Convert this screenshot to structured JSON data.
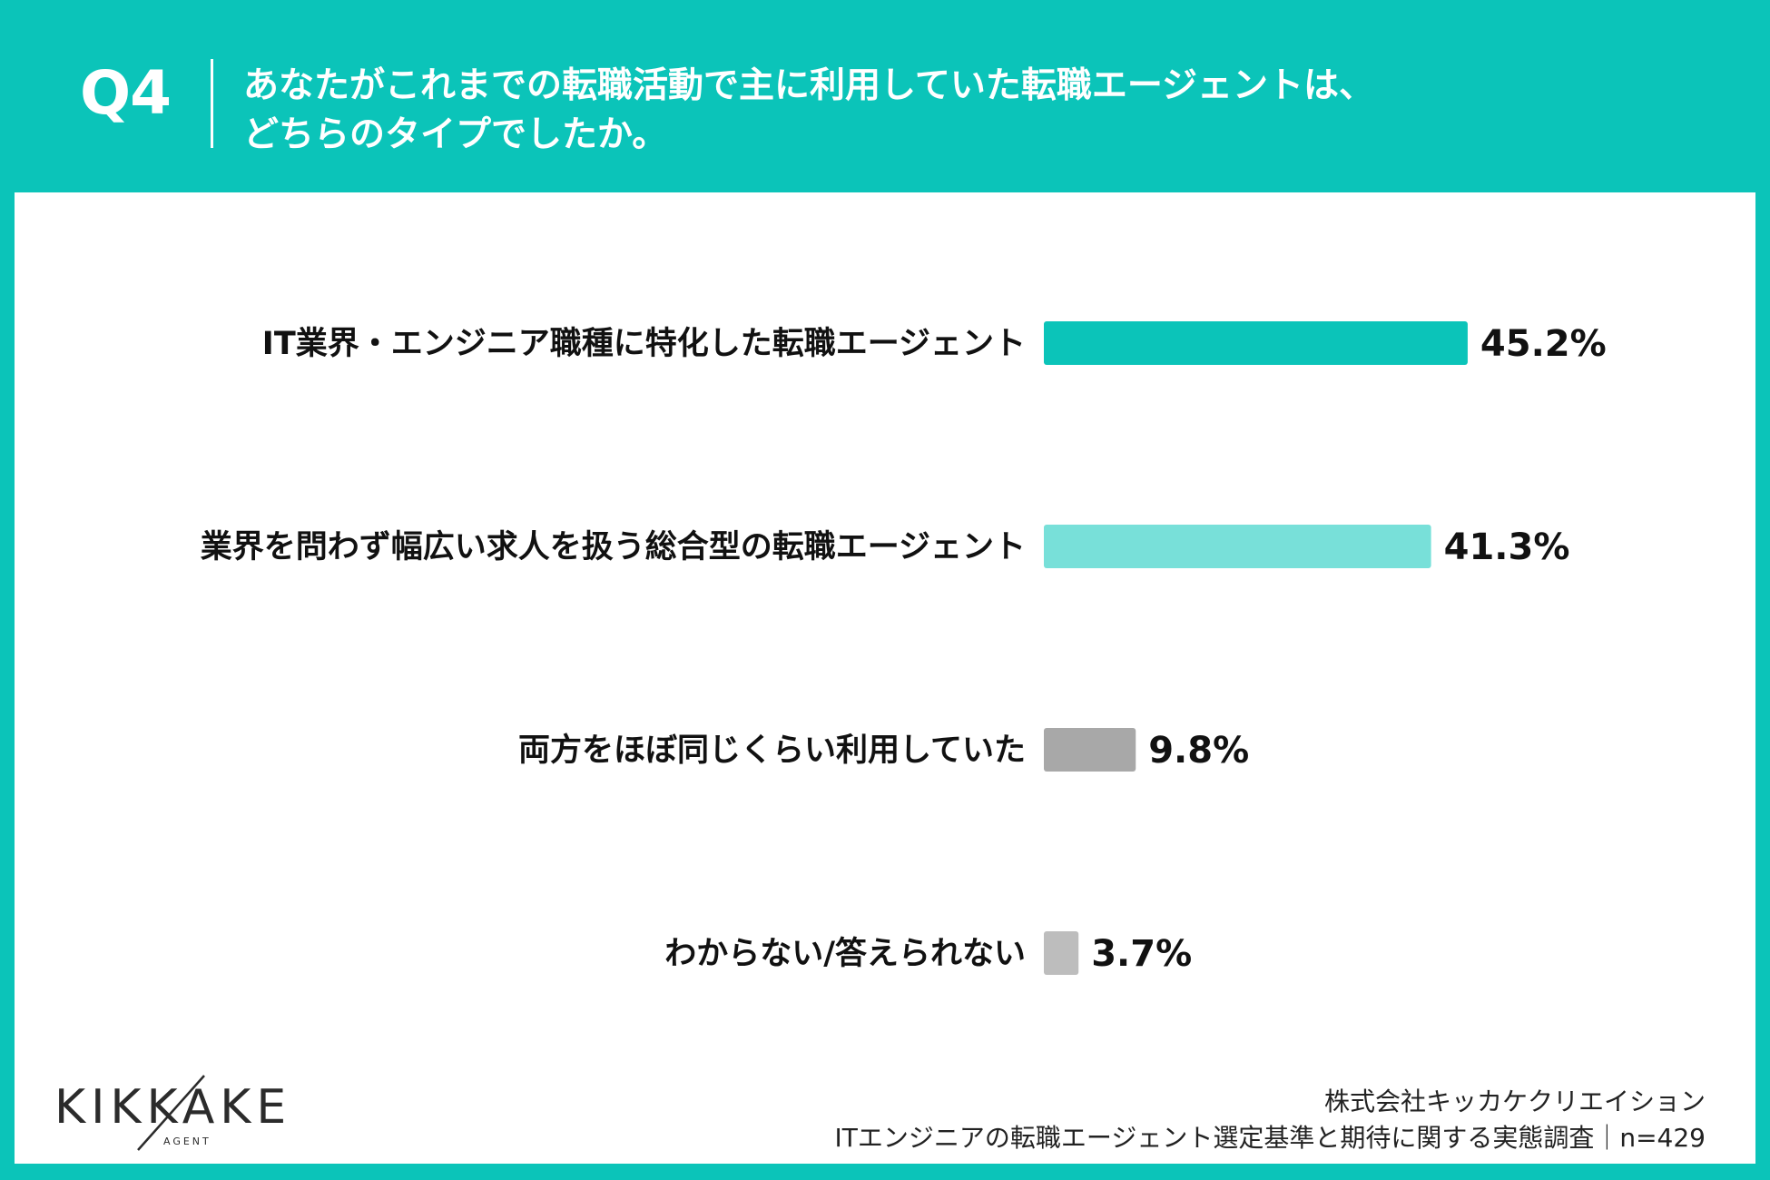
{
  "header": {
    "q_label": "Q4",
    "title_line1": "あなたがこれまでの転職活動で主に利用していた転職エージェントは、",
    "title_line2": "どちらのタイプでしたか。"
  },
  "colors": {
    "background": "#0bc4b9",
    "bar_primary": "#0bc4b9",
    "bar_light": "#78e0d9",
    "bar_gray_dark": "#a8a8a8",
    "bar_gray_light": "#bdbdbd"
  },
  "chart_data": {
    "type": "bar",
    "orientation": "horizontal",
    "categories": [
      "IT業界・エンジニア職種に特化した転職エージェント",
      "業界を問わず幅広い求人を扱う総合型の転職エージェント",
      "両方をほぼ同じくらい利用していた",
      "わからない/答えられない"
    ],
    "values": [
      45.2,
      41.3,
      9.8,
      3.7
    ],
    "value_labels": [
      "45.2%",
      "41.3%",
      "9.8%",
      "3.7%"
    ],
    "unit": "%",
    "xlim": [
      0,
      100
    ],
    "grid": false,
    "legend": "none"
  },
  "branding": {
    "logo_text": "KIKKAKE",
    "logo_sub": "AGENT"
  },
  "footer": {
    "company": "株式会社キッカケクリエイション",
    "survey": "ITエンジニアの転職エージェント選定基準と期待に関する実態調査｜n=429"
  }
}
